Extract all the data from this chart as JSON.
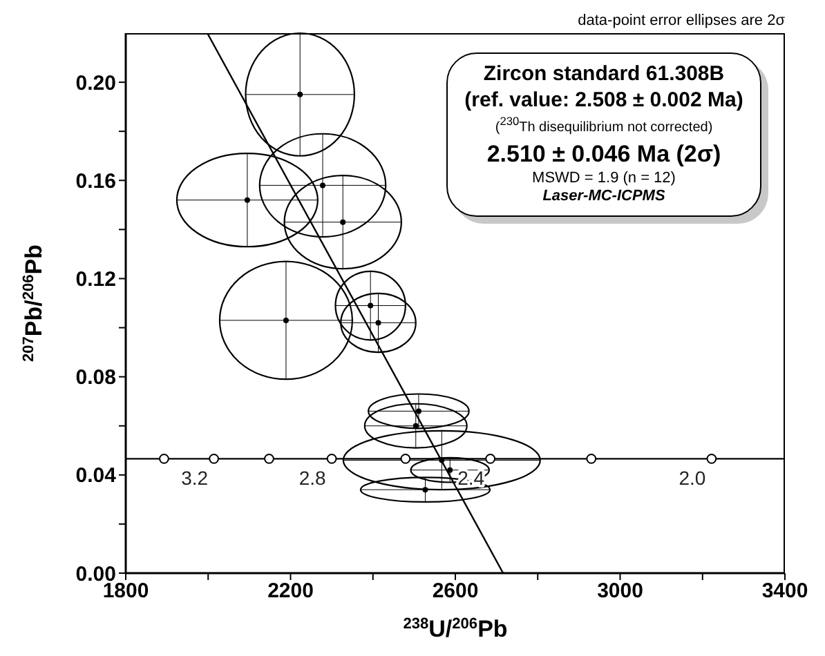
{
  "chart_data": {
    "type": "scatter",
    "xlabel": "$^{238}$U/$^{206}$Pb",
    "ylabel": "$^{207}$Pb/$^{206}$Pb",
    "xlim": [
      1800,
      3400
    ],
    "xticks": [
      1800,
      {
        "value": 2000,
        "label": null
      },
      2200,
      {
        "value": 2400,
        "label": null
      },
      2600,
      {
        "value": 2800,
        "label": null
      },
      3000,
      {
        "value": 3200,
        "label": null
      },
      3400
    ],
    "ylim": [
      0,
      0.22
    ],
    "yticks": [
      {
        "value": 0,
        "label": "0.00"
      },
      {
        "value": 0.02,
        "label": null
      },
      {
        "value": 0.04,
        "label": "0.04"
      },
      {
        "value": 0.06,
        "label": null
      },
      {
        "value": 0.08,
        "label": "0.08"
      },
      {
        "value": 0.1,
        "label": null
      },
      {
        "value": 0.12,
        "label": "0.12"
      },
      {
        "value": 0.14,
        "label": null
      },
      {
        "value": 0.16,
        "label": "0.16"
      },
      {
        "value": 0.18,
        "label": null
      },
      {
        "value": 0.2,
        "label": "0.20"
      }
    ],
    "grid": false,
    "legend": false,
    "series": [
      {
        "type": "scatter",
        "color": "#000000",
        "x": [
          2223,
          2095,
          2278,
          2327,
          2189,
          2394,
          2413,
          2511,
          2504,
          2567,
          2587,
          2527
        ],
        "values": [
          0.195,
          0.152,
          0.158,
          0.143,
          0.103,
          0.109,
          0.102,
          0.066,
          0.06,
          0.046,
          0.042,
          0.034
        ],
        "xerrors": [
          132,
          171,
          153,
          142,
          161,
          85,
          91,
          122,
          124,
          239,
          95,
          157
        ],
        "errors": [
          0.025,
          0.019,
          0.021,
          0.019,
          0.024,
          0.014,
          0.012,
          0.007,
          0.009,
          0.012,
          0.005,
          0.005
        ]
      },
      {
        "type": "line",
        "color": "#000000",
        "x": [
          1800,
          3400
        ],
        "values": [
          0.0466,
          0.0466
        ],
        "marker": "none"
      },
      {
        "type": "scatter",
        "color": "#000000",
        "x": [
          1893,
          2014,
          2148,
          2300,
          2479,
          2685,
          2930,
          3222
        ],
        "values": [
          0.0466,
          0.0466,
          0.0466,
          0.0466,
          0.0466,
          0.0466,
          0.0466,
          0.0466
        ],
        "marker": "circle"
      },
      {
        "type": "line",
        "color": "#000000",
        "x": [
          1998,
          2716
        ],
        "values": [
          0.22,
          0
        ],
        "marker": "none"
      }
    ],
    "annotations": [
      "data-point error ellipses are 2σ",
      "Zircon standard 61.308B",
      "(ref. value: 2.508 ± 0.002 Ma)",
      "($^{230}$Th disequilibrium not corrected)",
      "2.510 ± 0.046 Ma (2σ)",
      "MSWD = 1.9 (n = 12)",
      "Laser-MC-ICPMS",
      {
        "text": "3.2",
        "x": 2014,
        "y": 0.0466
      },
      {
        "text": "2.8",
        "x": 2300,
        "y": 0.0466
      },
      {
        "text": "2.4",
        "x": 2685,
        "y": 0.0466
      },
      {
        "text": "2.0",
        "x": 3222,
        "y": 0.0466
      }
    ]
  }
}
